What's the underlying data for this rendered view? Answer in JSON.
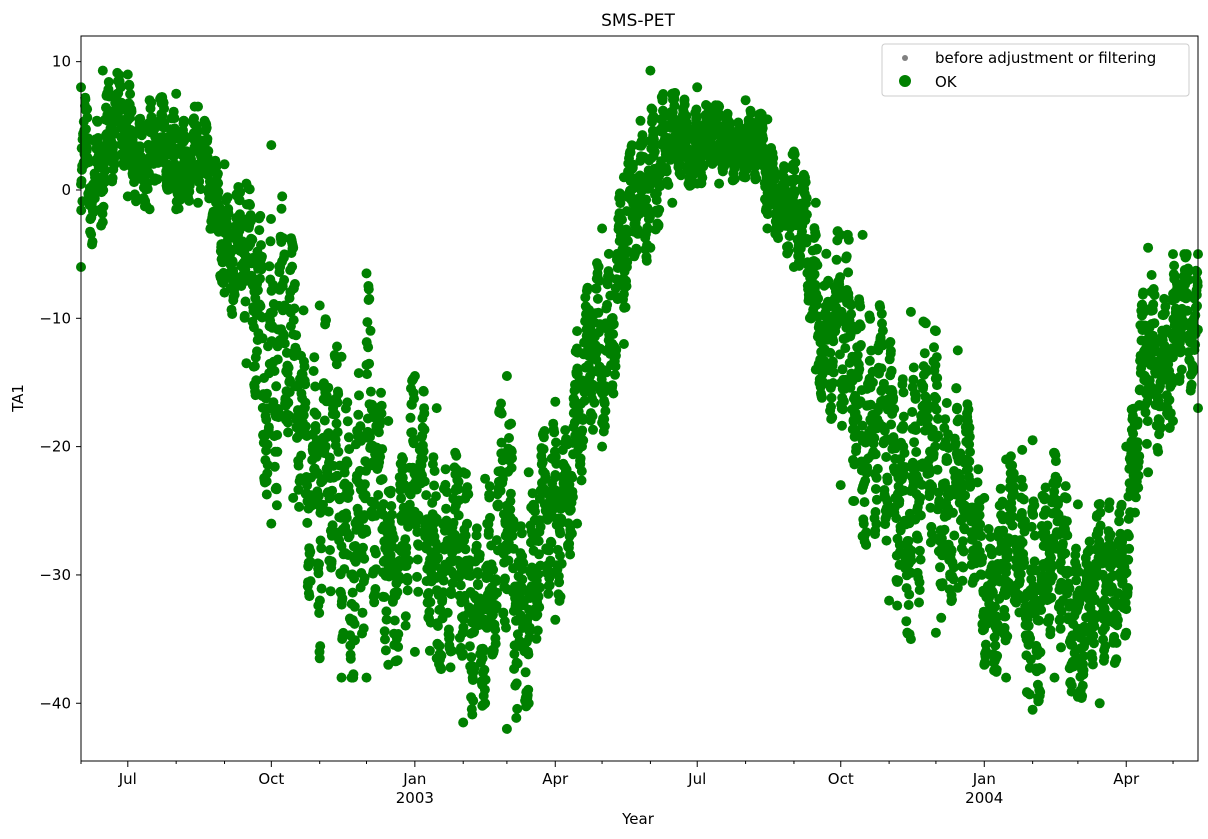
{
  "chart_data": {
    "type": "scatter",
    "title": "SMS-PET",
    "xlabel": "Year",
    "ylabel": "TA1",
    "xlim": [
      "2002-06-01",
      "2004-05-17"
    ],
    "ylim": [
      -44.5,
      12.0
    ],
    "grid": false,
    "legend_position": "top-right",
    "y_ticks": [
      10,
      0,
      -10,
      -20,
      -30,
      -40
    ],
    "y_tick_labels": [
      "10",
      "0",
      "−10",
      "−20",
      "−30",
      "−40"
    ],
    "x_ticks": [
      {
        "date": "2002-07-01",
        "label": "Jul",
        "sublabel": ""
      },
      {
        "date": "2002-10-01",
        "label": "Oct",
        "sublabel": ""
      },
      {
        "date": "2003-01-01",
        "label": "Jan",
        "sublabel": "2003"
      },
      {
        "date": "2003-04-01",
        "label": "Apr",
        "sublabel": ""
      },
      {
        "date": "2003-07-01",
        "label": "Jul",
        "sublabel": ""
      },
      {
        "date": "2003-10-01",
        "label": "Oct",
        "sublabel": ""
      },
      {
        "date": "2004-01-01",
        "label": "Jan",
        "sublabel": "2004"
      },
      {
        "date": "2004-04-01",
        "label": "Apr",
        "sublabel": ""
      }
    ],
    "x_minor_ticks": [
      "2002-06-01",
      "2002-08-01",
      "2002-09-01",
      "2002-11-01",
      "2002-12-01",
      "2003-02-01",
      "2003-03-01",
      "2003-05-01",
      "2003-06-01",
      "2003-08-01",
      "2003-09-01",
      "2003-11-01",
      "2003-12-01",
      "2004-02-01",
      "2004-03-01",
      "2004-05-01"
    ],
    "series": [
      {
        "name": "before adjustment or filtering",
        "color": "#808080",
        "marker": "small-dot",
        "values_hidden_under_ok": true
      },
      {
        "name": "OK",
        "color": "#008000",
        "marker": "large-dot",
        "envelope": [
          {
            "date": "2002-06-01",
            "min": -6.0,
            "max": 8.0
          },
          {
            "date": "2002-06-15",
            "min": -2.5,
            "max": 9.3
          },
          {
            "date": "2002-07-01",
            "min": -0.5,
            "max": 9.0
          },
          {
            "date": "2002-07-15",
            "min": -1.5,
            "max": 7.0
          },
          {
            "date": "2002-08-01",
            "min": -1.5,
            "max": 7.5
          },
          {
            "date": "2002-08-15",
            "min": -1.0,
            "max": 6.5
          },
          {
            "date": "2002-09-01",
            "min": -8.0,
            "max": 2.0
          },
          {
            "date": "2002-09-15",
            "min": -13.5,
            "max": 0.5
          },
          {
            "date": "2002-10-01",
            "min": -26.0,
            "max": 3.5
          },
          {
            "date": "2002-10-15",
            "min": -24.0,
            "max": -4.5
          },
          {
            "date": "2002-11-01",
            "min": -36.5,
            "max": -9.0
          },
          {
            "date": "2002-11-15",
            "min": -38.0,
            "max": -13.0
          },
          {
            "date": "2002-12-01",
            "min": -38.0,
            "max": -6.5
          },
          {
            "date": "2002-12-15",
            "min": -37.0,
            "max": -18.0
          },
          {
            "date": "2003-01-01",
            "min": -36.0,
            "max": -14.5
          },
          {
            "date": "2003-01-15",
            "min": -36.5,
            "max": -17.0
          },
          {
            "date": "2003-02-01",
            "min": -41.5,
            "max": -22.0
          },
          {
            "date": "2003-02-15",
            "min": -40.0,
            "max": -22.5
          },
          {
            "date": "2003-03-01",
            "min": -42.0,
            "max": -14.5
          },
          {
            "date": "2003-03-15",
            "min": -40.0,
            "max": -22.0
          },
          {
            "date": "2003-04-01",
            "min": -33.5,
            "max": -16.5
          },
          {
            "date": "2003-04-15",
            "min": -26.0,
            "max": -11.0
          },
          {
            "date": "2003-05-01",
            "min": -20.0,
            "max": -3.0
          },
          {
            "date": "2003-05-15",
            "min": -12.0,
            "max": 1.0
          },
          {
            "date": "2003-06-01",
            "min": -4.5,
            "max": 9.3
          },
          {
            "date": "2003-06-15",
            "min": -1.0,
            "max": 7.5
          },
          {
            "date": "2003-07-01",
            "min": 0.5,
            "max": 8.0
          },
          {
            "date": "2003-07-15",
            "min": 0.5,
            "max": 6.5
          },
          {
            "date": "2003-08-01",
            "min": 1.0,
            "max": 7.0
          },
          {
            "date": "2003-08-15",
            "min": -3.0,
            "max": 5.5
          },
          {
            "date": "2003-09-01",
            "min": -6.0,
            "max": 3.0
          },
          {
            "date": "2003-09-15",
            "min": -14.0,
            "max": -1.0
          },
          {
            "date": "2003-10-01",
            "min": -23.0,
            "max": -3.5
          },
          {
            "date": "2003-10-15",
            "min": -27.0,
            "max": -3.5
          },
          {
            "date": "2003-11-01",
            "min": -32.0,
            "max": -12.0
          },
          {
            "date": "2003-11-15",
            "min": -35.0,
            "max": -9.5
          },
          {
            "date": "2003-12-01",
            "min": -34.5,
            "max": -11.0
          },
          {
            "date": "2003-12-15",
            "min": -31.0,
            "max": -12.5
          },
          {
            "date": "2004-01-01",
            "min": -37.0,
            "max": -24.0
          },
          {
            "date": "2004-01-15",
            "min": -38.0,
            "max": -21.0
          },
          {
            "date": "2004-02-01",
            "min": -40.5,
            "max": -19.5
          },
          {
            "date": "2004-02-15",
            "min": -38.0,
            "max": -20.5
          },
          {
            "date": "2004-03-01",
            "min": -39.5,
            "max": -24.5
          },
          {
            "date": "2004-03-15",
            "min": -40.0,
            "max": -24.5
          },
          {
            "date": "2004-04-01",
            "min": -34.5,
            "max": -20.0
          },
          {
            "date": "2004-04-15",
            "min": -22.0,
            "max": -4.5
          },
          {
            "date": "2004-05-01",
            "min": -18.0,
            "max": -5.0
          },
          {
            "date": "2004-05-17",
            "min": -17.0,
            "max": -5.0
          }
        ]
      }
    ]
  }
}
